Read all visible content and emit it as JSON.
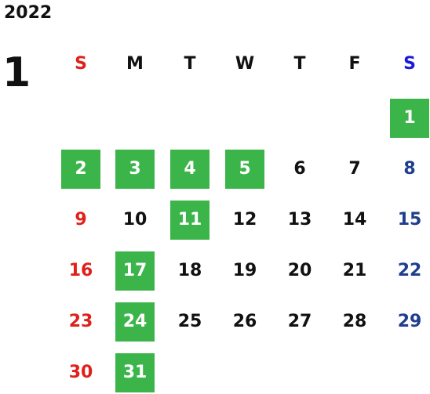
{
  "year": "2022",
  "month": "1",
  "colors": {
    "highlight": "#3bb54a",
    "sunday": "#e0201b",
    "saturday_header": "#1a1adb",
    "saturday_day": "#1f3f8c",
    "default": "#111111"
  },
  "weekdays": [
    {
      "label": "S",
      "type": "sunday"
    },
    {
      "label": "M",
      "type": "weekday"
    },
    {
      "label": "T",
      "type": "weekday"
    },
    {
      "label": "W",
      "type": "weekday"
    },
    {
      "label": "T",
      "type": "weekday"
    },
    {
      "label": "F",
      "type": "weekday"
    },
    {
      "label": "S",
      "type": "saturday"
    }
  ],
  "first_weekday_index": 6,
  "days": [
    {
      "day": "1",
      "highlighted": true
    },
    {
      "day": "2",
      "highlighted": true
    },
    {
      "day": "3",
      "highlighted": true
    },
    {
      "day": "4",
      "highlighted": true
    },
    {
      "day": "5",
      "highlighted": true
    },
    {
      "day": "6",
      "highlighted": false
    },
    {
      "day": "7",
      "highlighted": false
    },
    {
      "day": "8",
      "highlighted": false
    },
    {
      "day": "9",
      "highlighted": false
    },
    {
      "day": "10",
      "highlighted": false
    },
    {
      "day": "11",
      "highlighted": true
    },
    {
      "day": "12",
      "highlighted": false
    },
    {
      "day": "13",
      "highlighted": false
    },
    {
      "day": "14",
      "highlighted": false
    },
    {
      "day": "15",
      "highlighted": false
    },
    {
      "day": "16",
      "highlighted": false
    },
    {
      "day": "17",
      "highlighted": true
    },
    {
      "day": "18",
      "highlighted": false
    },
    {
      "day": "19",
      "highlighted": false
    },
    {
      "day": "20",
      "highlighted": false
    },
    {
      "day": "21",
      "highlighted": false
    },
    {
      "day": "22",
      "highlighted": false
    },
    {
      "day": "23",
      "highlighted": false
    },
    {
      "day": "24",
      "highlighted": true
    },
    {
      "day": "25",
      "highlighted": false
    },
    {
      "day": "26",
      "highlighted": false
    },
    {
      "day": "27",
      "highlighted": false
    },
    {
      "day": "28",
      "highlighted": false
    },
    {
      "day": "29",
      "highlighted": false
    },
    {
      "day": "30",
      "highlighted": false
    },
    {
      "day": "31",
      "highlighted": true
    }
  ]
}
